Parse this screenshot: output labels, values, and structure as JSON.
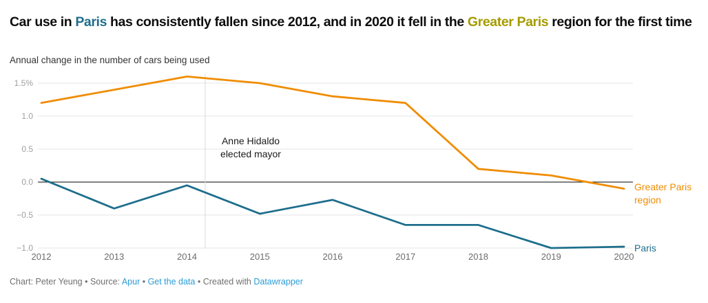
{
  "title": {
    "pre": "Car use in ",
    "paris": "Paris",
    "mid": " has consistently fallen since 2012, and in 2020 it fell in the ",
    "greater": "Greater Paris",
    "post": " region for the first time"
  },
  "subtitle": "Annual change in the number of cars being used",
  "colors": {
    "paris_line": "#1d6e8c",
    "greater_line": "#f08c00",
    "paris_title": "#1d6e8c",
    "greater_title": "#a59b00",
    "link": "#2b9bd7",
    "grid": "#e4e4e4",
    "zero_line": "#000000",
    "annotation_line": "#dadada",
    "annotation_text": "#1a1a1a",
    "y_label": "#9e9e9e",
    "x_label": "#6b6b6b",
    "footer_text": "#6f6f6f"
  },
  "chart_data": {
    "type": "line",
    "title": "Car use in Paris has consistently fallen since 2012, and in 2020 it fell in the Greater Paris region for the first time",
    "subtitle": "Annual change in the number of cars being used",
    "x": [
      2012,
      2013,
      2014,
      2015,
      2016,
      2017,
      2018,
      2019,
      2020
    ],
    "series": [
      {
        "name": "Greater Paris region",
        "label_line1": "Greater Paris",
        "label_line2": "region",
        "values": [
          1.2,
          1.4,
          1.6,
          1.5,
          1.3,
          1.2,
          0.2,
          0.1,
          -0.1
        ]
      },
      {
        "name": "Paris",
        "label_line1": "Paris",
        "label_line2": "",
        "values": [
          0.05,
          -0.4,
          -0.05,
          -0.48,
          -0.27,
          -0.65,
          -0.65,
          -1.0,
          -0.98
        ]
      }
    ],
    "ylim": [
      -1.05,
      1.65
    ],
    "yticks": [
      {
        "v": 1.5,
        "label": "1.5%"
      },
      {
        "v": 1.0,
        "label": "1.0"
      },
      {
        "v": 0.5,
        "label": "0.5"
      },
      {
        "v": 0.0,
        "label": "0.0"
      },
      {
        "v": -0.5,
        "label": "−0.5"
      },
      {
        "v": -1.0,
        "label": "−1.0"
      }
    ],
    "grid": "horizontal",
    "legend_position": "labels-at-line-ends-right",
    "annotation": {
      "x": 2014.25,
      "text": "Anne Hidaldo elected mayor",
      "line1": "Anne Hidaldo",
      "line2": "elected mayor"
    }
  },
  "footer": {
    "credit": "Chart: Peter Yeung • Source: ",
    "source_link": "Apur",
    "sep1": " • ",
    "data_link": "Get the data",
    "sep2": " • Created with ",
    "tool_link": "Datawrapper"
  }
}
